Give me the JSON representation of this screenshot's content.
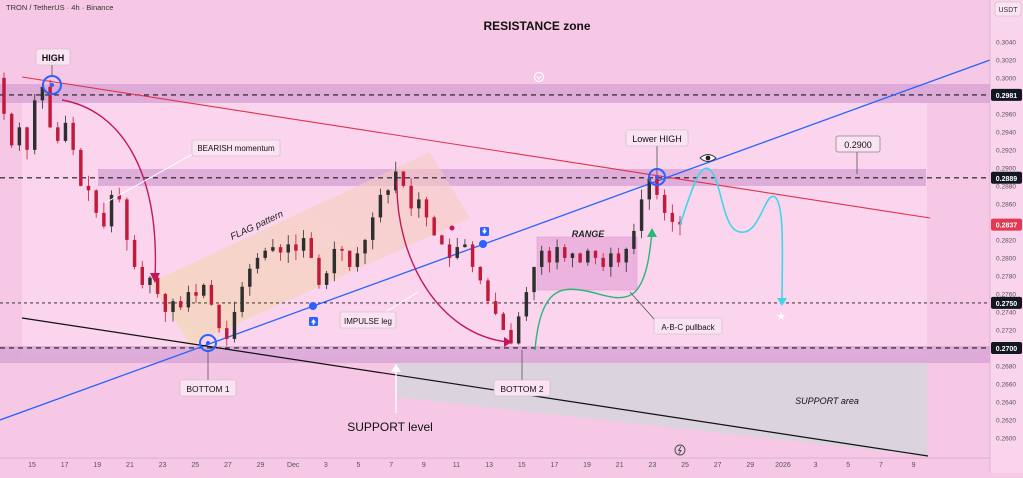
{
  "header": {
    "symbol_text": "TRON / TetherUS · 4h · Binance",
    "currency": "USDT"
  },
  "annotations": {
    "resistance_zone": "RESISTANCE zone",
    "high": "HIGH",
    "bearish_momentum": "BEARISH momentum",
    "flag_pattern": "FLAG pattern",
    "impulse_leg": "IMPULSE leg",
    "range": "RANGE",
    "lower_high": "Lower HIGH",
    "target_label": "0.2900",
    "abc_pullback": "A-B-C pullback",
    "bottom1": "BOTTOM 1",
    "bottom2": "BOTTOM 2",
    "support_level": "SUPPORT level",
    "support_area": "SUPPORT area"
  },
  "price_badges": {
    "b2981": "0.2981",
    "b2889": "0.2889",
    "b2837": "0.2837",
    "b2750": "0.2750",
    "b2700": "0.2700"
  },
  "colors": {
    "background": "#f6c8e6",
    "zone_band": "#d9a6d6",
    "trend_blue": "#2962ff",
    "trend_red": "#e0314b",
    "bull_candle": "#2f2f2f",
    "bear_candle": "#c21a3a",
    "cyan_path": "#3fd6e8",
    "green_path": "#2bb57a",
    "magenta_arrow": "#c2185b",
    "badge_dark": "#131722",
    "badge_red": "#e53950"
  },
  "chart_data": {
    "type": "candlestick",
    "ylim": [
      0.259,
      0.3052
    ],
    "y_ticks": [
      "0.3040",
      "0.3020",
      "0.3000",
      "0.2980",
      "0.2960",
      "0.2940",
      "0.2920",
      "0.2900",
      "0.2880",
      "0.2860",
      "0.2840",
      "0.2820",
      "0.2800",
      "0.2780",
      "0.2760",
      "0.2740",
      "0.2720",
      "0.2700",
      "0.2680",
      "0.2660",
      "0.2640",
      "0.2620",
      "0.2600"
    ],
    "x_ticks": [
      "15",
      "17",
      "19",
      "21",
      "23",
      "25",
      "27",
      "29",
      "Dec",
      "3",
      "5",
      "7",
      "9",
      "11",
      "13",
      "15",
      "17",
      "19",
      "21",
      "23",
      "25",
      "27",
      "29",
      "2026",
      "3",
      "5",
      "7",
      "9"
    ],
    "horizontal_levels": [
      0.2981,
      0.2889,
      0.275,
      0.27
    ],
    "last_price": 0.2837,
    "price_path": [
      [
        0.3,
        0.296
      ],
      [
        0.296,
        0.2925
      ],
      [
        0.2925,
        0.2945
      ],
      [
        0.2945,
        0.292
      ],
      [
        0.292,
        0.2975
      ],
      [
        0.2975,
        0.299
      ],
      [
        0.299,
        0.2945
      ],
      [
        0.2945,
        0.293
      ],
      [
        0.293,
        0.295
      ],
      [
        0.295,
        0.292
      ],
      [
        0.292,
        0.288
      ],
      [
        0.288,
        0.2875
      ],
      [
        0.2875,
        0.285
      ],
      [
        0.285,
        0.2835
      ],
      [
        0.2835,
        0.287
      ],
      [
        0.287,
        0.2865
      ],
      [
        0.2865,
        0.282
      ],
      [
        0.282,
        0.279
      ],
      [
        0.279,
        0.277
      ],
      [
        0.277,
        0.2778
      ],
      [
        0.2778,
        0.276
      ],
      [
        0.276,
        0.274
      ],
      [
        0.274,
        0.2752
      ],
      [
        0.2752,
        0.2745
      ],
      [
        0.2745,
        0.2762
      ],
      [
        0.2762,
        0.2758
      ],
      [
        0.2758,
        0.277
      ],
      [
        0.277,
        0.2748
      ],
      [
        0.2748,
        0.2722
      ],
      [
        0.2722,
        0.271
      ],
      [
        0.271,
        0.274
      ],
      [
        0.274,
        0.2768
      ],
      [
        0.2768,
        0.2788
      ],
      [
        0.2788,
        0.28
      ],
      [
        0.28,
        0.2808
      ],
      [
        0.2808,
        0.2812
      ],
      [
        0.2812,
        0.2806
      ],
      [
        0.2806,
        0.2815
      ],
      [
        0.2815,
        0.2808
      ],
      [
        0.2808,
        0.2822
      ],
      [
        0.2822,
        0.28
      ],
      [
        0.28,
        0.277
      ],
      [
        0.277,
        0.2783
      ],
      [
        0.2783,
        0.281
      ],
      [
        0.281,
        0.2808
      ],
      [
        0.2808,
        0.279
      ],
      [
        0.279,
        0.2805
      ],
      [
        0.2805,
        0.282
      ],
      [
        0.282,
        0.2845
      ],
      [
        0.2845,
        0.287
      ],
      [
        0.287,
        0.2875
      ],
      [
        0.2875,
        0.2896
      ],
      [
        0.2896,
        0.288
      ],
      [
        0.288,
        0.2855
      ],
      [
        0.2855,
        0.2865
      ],
      [
        0.2865,
        0.2845
      ],
      [
        0.2845,
        0.2825
      ],
      [
        0.2825,
        0.2815
      ],
      [
        0.2815,
        0.28
      ],
      [
        0.28,
        0.2812
      ],
      [
        0.2812,
        0.2815
      ],
      [
        0.2815,
        0.279
      ],
      [
        0.279,
        0.2775
      ],
      [
        0.2775,
        0.2752
      ],
      [
        0.2752,
        0.2738
      ],
      [
        0.2738,
        0.272
      ],
      [
        0.272,
        0.2705
      ],
      [
        0.2705,
        0.2735
      ],
      [
        0.2735,
        0.2762
      ],
      [
        0.2762,
        0.279
      ],
      [
        0.279,
        0.2808
      ],
      [
        0.2808,
        0.2795
      ],
      [
        0.2795,
        0.2812
      ],
      [
        0.2812,
        0.28
      ],
      [
        0.28,
        0.2805
      ],
      [
        0.2805,
        0.2795
      ],
      [
        0.2795,
        0.2808
      ],
      [
        0.2808,
        0.28
      ],
      [
        0.28,
        0.279
      ],
      [
        0.279,
        0.2805
      ],
      [
        0.2805,
        0.2795
      ],
      [
        0.2795,
        0.281
      ],
      [
        0.281,
        0.283
      ],
      [
        0.283,
        0.2865
      ],
      [
        0.2865,
        0.2888
      ],
      [
        0.2888,
        0.287
      ],
      [
        0.287,
        0.285
      ],
      [
        0.285,
        0.284
      ],
      [
        0.284,
        0.2837
      ]
    ]
  }
}
